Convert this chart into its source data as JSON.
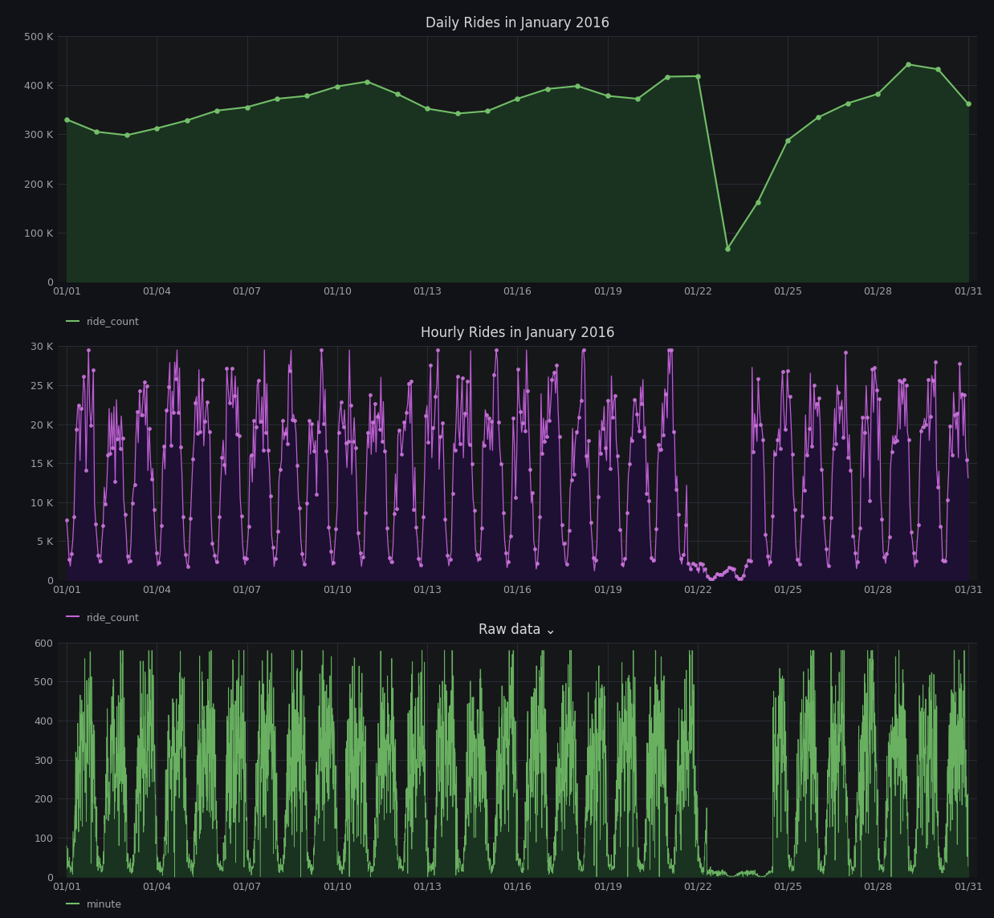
{
  "bg_color": "#111217",
  "panel_bg": "#161719",
  "panel_border": "#1f2023",
  "grid_color": "#2c2f3a",
  "text_color": "#9fa2a8",
  "title_color": "#d8d9da",
  "panel1": {
    "title": "Daily Rides in January 2016",
    "line_color": "#73bf69",
    "fill_color": "#1a3320",
    "marker_color": "#73bf69",
    "legend_label": "ride_count",
    "ylim": [
      0,
      500000
    ],
    "ytick_labels": [
      "0",
      "100 K",
      "200 K",
      "300 K",
      "400 K",
      "500 K"
    ]
  },
  "panel2": {
    "title": "Hourly Rides in January 2016",
    "line_color": "#c463d7",
    "fill_color": "#1e1033",
    "marker_color": "#cc77dd",
    "legend_label": "ride_count",
    "ylim": [
      0,
      30000
    ],
    "ytick_labels": [
      "0",
      "5 K",
      "10 K",
      "15 K",
      "20 K",
      "25 K",
      "30 K"
    ]
  },
  "panel3": {
    "title": "Raw data ⌄",
    "line_color": "#73bf69",
    "fill_color": "#1a3320",
    "legend_label": "minute",
    "ylim": [
      0,
      600
    ],
    "ytick_labels": [
      "0",
      "100",
      "200",
      "300",
      "400",
      "500",
      "600"
    ]
  },
  "xtick_dates": [
    "01/01",
    "01/04",
    "01/07",
    "01/10",
    "01/13",
    "01/16",
    "01/19",
    "01/22",
    "01/25",
    "01/28",
    "01/31"
  ],
  "xtick_positions": [
    0,
    3,
    6,
    9,
    12,
    15,
    18,
    21,
    24,
    27,
    30
  ]
}
